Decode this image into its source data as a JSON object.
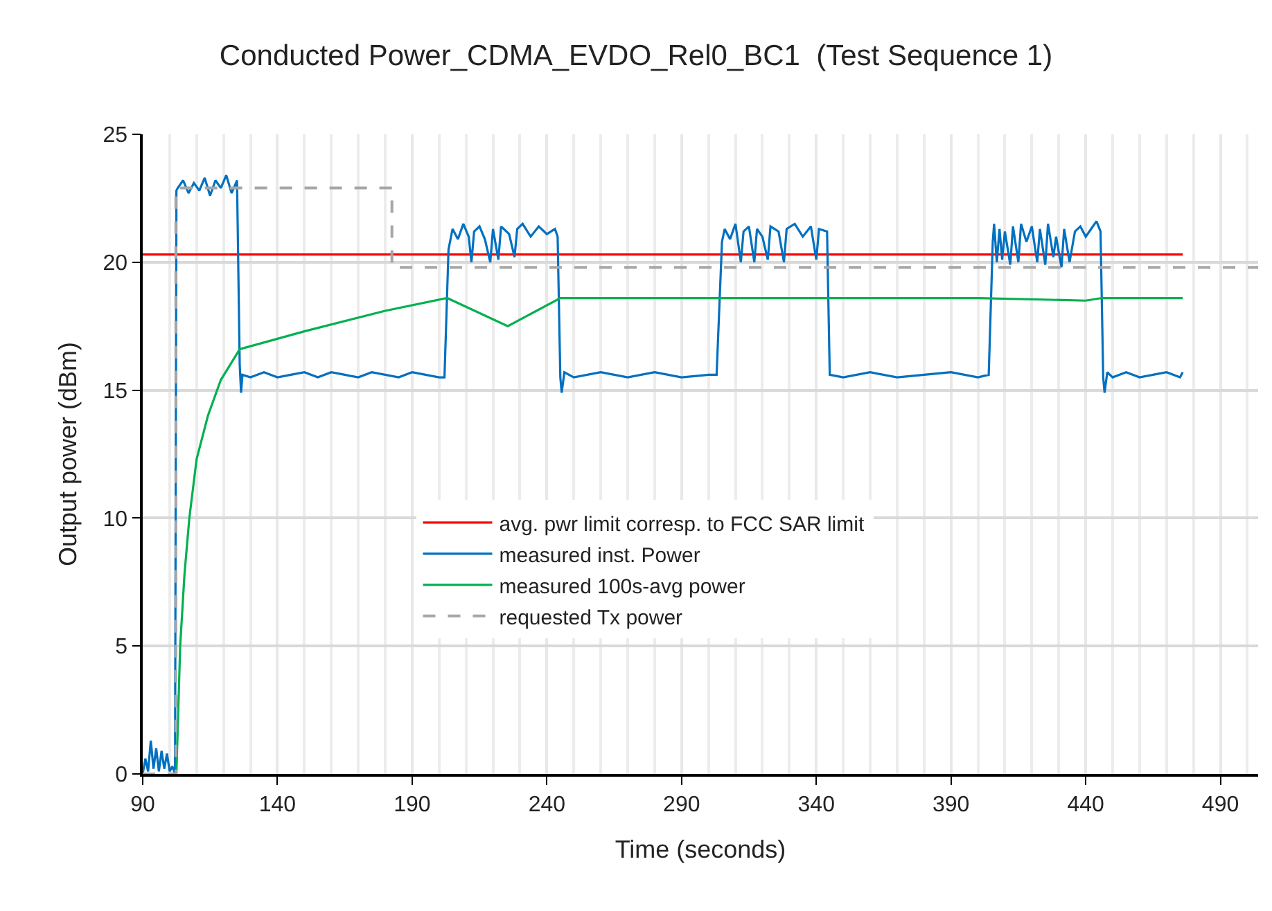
{
  "chart_data": {
    "type": "line",
    "title": "Conducted Power_CDMA_EVDO_Rel0_BC1  (Test Sequence 1)",
    "xlabel": "Time (seconds)",
    "ylabel": "Output power (dBm)",
    "xlim": [
      90,
      504
    ],
    "ylim": [
      0,
      25
    ],
    "xticks": [
      90,
      {
        "value": 100,
        "label": null
      },
      {
        "value": 110,
        "label": null
      },
      {
        "value": 120,
        "label": null
      },
      {
        "value": 130,
        "label": null
      },
      140,
      {
        "value": 150,
        "label": null
      },
      {
        "value": 160,
        "label": null
      },
      {
        "value": 170,
        "label": null
      },
      {
        "value": 180,
        "label": null
      },
      190,
      {
        "value": 200,
        "label": null
      },
      {
        "value": 210,
        "label": null
      },
      {
        "value": 220,
        "label": null
      },
      {
        "value": 230,
        "label": null
      },
      240,
      {
        "value": 250,
        "label": null
      },
      {
        "value": 260,
        "label": null
      },
      {
        "value": 270,
        "label": null
      },
      {
        "value": 280,
        "label": null
      },
      290,
      {
        "value": 300,
        "label": null
      },
      {
        "value": 310,
        "label": null
      },
      {
        "value": 320,
        "label": null
      },
      {
        "value": 330,
        "label": null
      },
      340,
      {
        "value": 350,
        "label": null
      },
      {
        "value": 360,
        "label": null
      },
      {
        "value": 370,
        "label": null
      },
      {
        "value": 380,
        "label": null
      },
      390,
      {
        "value": 400,
        "label": null
      },
      {
        "value": 410,
        "label": null
      },
      {
        "value": 420,
        "label": null
      },
      {
        "value": 430,
        "label": null
      },
      440,
      {
        "value": 450,
        "label": null
      },
      {
        "value": 460,
        "label": null
      },
      {
        "value": 470,
        "label": null
      },
      {
        "value": 480,
        "label": null
      },
      490,
      {
        "value": 500,
        "label": null
      }
    ],
    "yticks": [
      0,
      5,
      10,
      15,
      20,
      25
    ],
    "grid": true,
    "legend": "center",
    "marker": "none",
    "series": [
      {
        "name": "avg. pwr limit corresp. to FCC SAR limit",
        "color": "#ff0000",
        "x": [
          90,
          476
        ],
        "values": [
          20.3,
          20.3
        ]
      },
      {
        "name": "measured inst. Power",
        "color": "#0070c0",
        "x": [
          90,
          91,
          92,
          93,
          94,
          95,
          96,
          97,
          98,
          99,
          100,
          101,
          102,
          102.5,
          103,
          105,
          107,
          109,
          111,
          113,
          115,
          117,
          119,
          121,
          123,
          125,
          126,
          126.5,
          127,
          130,
          135,
          140,
          145,
          150,
          155,
          160,
          165,
          170,
          175,
          180,
          185,
          190,
          195,
          200,
          202,
          203.5,
          205,
          207,
          209,
          211,
          212,
          213,
          215,
          217,
          219,
          220,
          222,
          223,
          226,
          228,
          229,
          231,
          234,
          237,
          240,
          243,
          244,
          245,
          245.5,
          246.5,
          250,
          260,
          270,
          280,
          290,
          300,
          303,
          305,
          306,
          308,
          310,
          312,
          313,
          315,
          317,
          318,
          320,
          322,
          323,
          326,
          328,
          329,
          332,
          335,
          338,
          340,
          341,
          344,
          345,
          350,
          360,
          370,
          380,
          390,
          400,
          404,
          405.5,
          406,
          407,
          408,
          409,
          410,
          412,
          413,
          415,
          416,
          418,
          420,
          422,
          423,
          425,
          426,
          428,
          429,
          431,
          432,
          434,
          436,
          438,
          440,
          442,
          444,
          445.5,
          446.5,
          447,
          448,
          450,
          455,
          460,
          465,
          470,
          475,
          476
        ],
        "values": [
          0,
          0.6,
          0.1,
          1.3,
          0.2,
          1.0,
          0.1,
          0.9,
          0.2,
          0.8,
          0.1,
          0.3,
          0,
          22.8,
          22.9,
          23.2,
          22.7,
          23.1,
          22.8,
          23.3,
          22.6,
          23.2,
          22.9,
          23.4,
          22.7,
          23.2,
          16,
          14.9,
          15.6,
          15.5,
          15.7,
          15.5,
          15.6,
          15.7,
          15.5,
          15.7,
          15.6,
          15.5,
          15.7,
          15.6,
          15.5,
          15.7,
          15.6,
          15.5,
          15.5,
          20.5,
          21.3,
          20.9,
          21.5,
          21.0,
          20.0,
          21.2,
          21.4,
          20.9,
          20.0,
          21.3,
          20.1,
          21.4,
          21.1,
          20.2,
          21.3,
          21.5,
          21.0,
          21.4,
          21.1,
          21.3,
          21.0,
          15.5,
          14.9,
          15.7,
          15.5,
          15.7,
          15.5,
          15.7,
          15.5,
          15.6,
          15.6,
          20.8,
          21.3,
          20.9,
          21.5,
          20.0,
          21.2,
          21.4,
          20.0,
          21.3,
          21.0,
          20.1,
          21.4,
          21.2,
          20.0,
          21.3,
          21.5,
          21.0,
          21.4,
          20.1,
          21.3,
          21.2,
          15.6,
          15.5,
          15.7,
          15.5,
          15.6,
          15.7,
          15.5,
          15.6,
          20.8,
          21.5,
          20.0,
          21.3,
          20.1,
          21.2,
          19.9,
          21.4,
          20.0,
          21.5,
          20.8,
          21.4,
          20.0,
          21.3,
          19.9,
          21.5,
          20.2,
          21.0,
          19.8,
          21.3,
          20.0,
          21.2,
          21.4,
          21.0,
          21.3,
          21.6,
          21.2,
          15.5,
          14.9,
          15.7,
          15.5,
          15.7,
          15.5,
          15.6,
          15.7,
          15.5,
          15.7
        ]
      },
      {
        "name": "measured 100s-avg power",
        "color": "#00b050",
        "x": [
          102.5,
          103.9,
          105.5,
          107.3,
          110,
          114.2,
          119,
          126,
          150,
          180,
          203,
          225.5,
          245,
          300,
          350,
          400,
          440,
          446,
          476
        ],
        "values": [
          0,
          5.0,
          7.8,
          10.0,
          12.3,
          14.0,
          15.4,
          16.6,
          17.3,
          18.1,
          18.6,
          17.5,
          18.6,
          18.6,
          18.6,
          18.6,
          18.5,
          18.6,
          18.6
        ]
      },
      {
        "name": "requested Tx power",
        "color": "#a6a6a6",
        "line_style": "dashed",
        "x": [
          90,
          102.3,
          102.3,
          182.5,
          182.5,
          504
        ],
        "values": [
          0,
          0,
          22.9,
          22.9,
          19.8,
          19.8
        ]
      }
    ]
  }
}
